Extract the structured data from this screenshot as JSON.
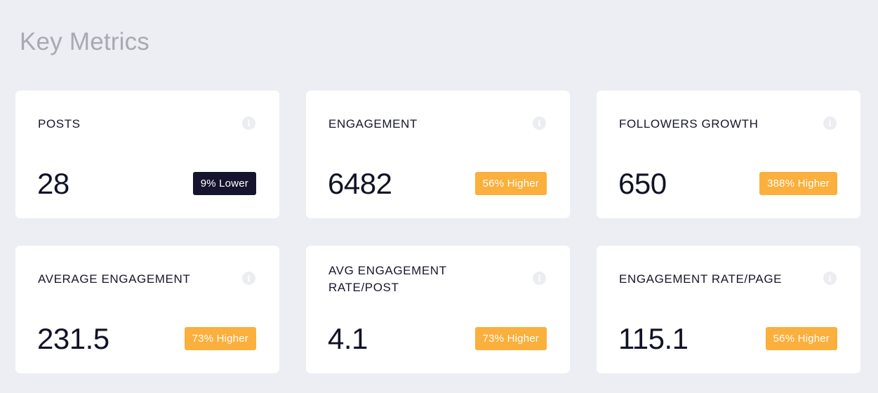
{
  "header": {
    "title": "Key Metrics"
  },
  "colors": {
    "badge_lower": "#15142e",
    "badge_higher": "#fbaf3c"
  },
  "cards": [
    {
      "label": "POSTS",
      "value": "28",
      "badge": "9% Lower",
      "trend": "lower"
    },
    {
      "label": "ENGAGEMENT",
      "value": "6482",
      "badge": "56% Higher",
      "trend": "higher"
    },
    {
      "label": "FOLLOWERS GROWTH",
      "value": "650",
      "badge": "388% Higher",
      "trend": "higher"
    },
    {
      "label": "AVERAGE ENGAGEMENT",
      "value": "231.5",
      "badge": "73% Higher",
      "trend": "higher"
    },
    {
      "label": "AVG ENGAGEMENT RATE/POST",
      "value": "4.1",
      "badge": "73% Higher",
      "trend": "higher"
    },
    {
      "label": "ENGAGEMENT RATE/PAGE",
      "value": "115.1",
      "badge": "56% Higher",
      "trend": "higher"
    }
  ]
}
